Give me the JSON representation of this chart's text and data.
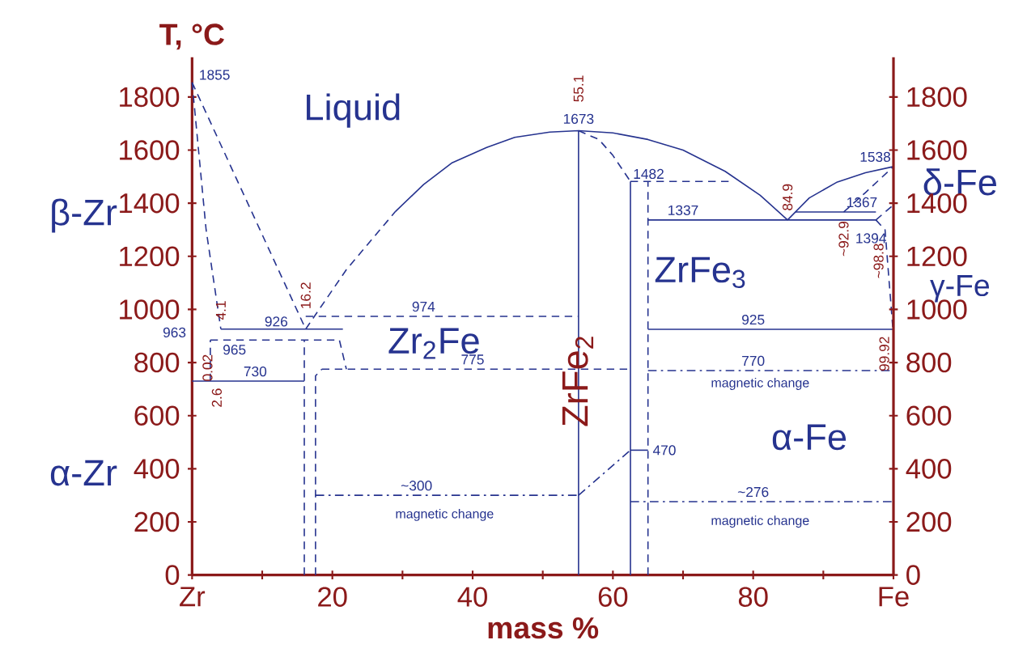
{
  "chart_data": {
    "type": "line",
    "xlabel": "mass %",
    "ylabel": "T, °C",
    "color": "#26338f",
    "grid": false,
    "marker": "none",
    "xlim": [
      0,
      100
    ],
    "xticks": [
      {
        "value": 0,
        "label": "Zr"
      },
      {
        "value": 10,
        "label": null
      },
      20,
      {
        "value": 30,
        "label": null
      },
      40,
      {
        "value": 50,
        "label": null
      },
      60,
      {
        "value": 70,
        "label": null
      },
      80,
      {
        "value": 90,
        "label": null
      },
      {
        "value": 100,
        "label": "Fe"
      }
    ],
    "ylim": [
      0,
      1950
    ],
    "yticks": [
      0,
      200,
      400,
      600,
      800,
      1000,
      1200,
      1400,
      1600,
      1800
    ],
    "y2lim": [
      0,
      1950
    ],
    "y2ticks": [
      0,
      200,
      400,
      600,
      800,
      1000,
      1200,
      1400,
      1600,
      1800
    ],
    "series": [
      {
        "x": [
          0,
          16.2
        ],
        "values": [
          1855,
          926
        ],
        "line_style": "dashed"
      },
      {
        "x": [
          16.2,
          22,
          29
        ],
        "values": [
          926,
          1150,
          1369
        ],
        "line_style": "dashed"
      },
      {
        "x": [
          29,
          33,
          37,
          42,
          46,
          51,
          55.1,
          60,
          65,
          70,
          76,
          81,
          84.9
        ],
        "values": [
          1369,
          1470,
          1551,
          1610,
          1648,
          1668,
          1673,
          1665,
          1640,
          1600,
          1520,
          1430,
          1337
        ],
        "line_style": "solid"
      },
      {
        "x": [
          84.9,
          88,
          92,
          96,
          100
        ],
        "values": [
          1337,
          1420,
          1480,
          1515,
          1538
        ],
        "line_style": "solid"
      },
      {
        "x": [
          0,
          2,
          4.1
        ],
        "values": [
          1855,
          1300,
          926
        ],
        "line_style": "dashed"
      },
      {
        "x": [
          4.1,
          21.5
        ],
        "values": [
          926,
          926
        ],
        "line_style": "solid"
      },
      {
        "x": [
          2.6,
          21,
          22
        ],
        "values": [
          885,
          885,
          775
        ],
        "line_style": "dashed"
      },
      {
        "x": [
          2.6,
          2.6
        ],
        "values": [
          730,
          885
        ],
        "line_style": "dashed"
      },
      {
        "x": [
          0,
          16
        ],
        "values": [
          730,
          730
        ],
        "line_style": "solid"
      },
      {
        "x": [
          16,
          16
        ],
        "values": [
          0,
          885
        ],
        "line_style": "dashed"
      },
      {
        "x": [
          17.6,
          17.6,
          18.5
        ],
        "values": [
          0,
          750,
          775
        ],
        "line_style": "dashed"
      },
      {
        "x": [
          18.5,
          62.5
        ],
        "values": [
          775,
          775
        ],
        "line_style": "dashed"
      },
      {
        "x": [
          16.2,
          55.1
        ],
        "values": [
          974,
          974
        ],
        "line_style": "dashed"
      },
      {
        "x": [
          55.1,
          55.1
        ],
        "values": [
          0,
          1673
        ],
        "line_style": "solid"
      },
      {
        "x": [
          55.1,
          58,
          60,
          62.5
        ],
        "values": [
          1673,
          1640,
          1580,
          1482
        ],
        "line_style": "dashed"
      },
      {
        "x": [
          62.5,
          62.5
        ],
        "values": [
          0,
          1482
        ],
        "line_style": "solid"
      },
      {
        "x": [
          62.5,
          76.5
        ],
        "values": [
          1482,
          1482
        ],
        "line_style": "dashed"
      },
      {
        "x": [
          65,
          65
        ],
        "values": [
          0,
          1482
        ],
        "line_style": "dashed"
      },
      {
        "x": [
          65,
          97.5
        ],
        "values": [
          1337,
          1337
        ],
        "line_style": "solid"
      },
      {
        "x": [
          86,
          97.5
        ],
        "values": [
          1367,
          1367
        ],
        "line_style": "solid"
      },
      {
        "x": [
          92.9,
          96,
          100
        ],
        "values": [
          1367,
          1440,
          1538
        ],
        "line_style": "dashed"
      },
      {
        "x": [
          97.5,
          98.8,
          99.92
        ],
        "values": [
          1337,
          1300,
          925
        ],
        "line_style": "dashed"
      },
      {
        "x": [
          97.5,
          100
        ],
        "values": [
          1337,
          1394
        ],
        "line_style": "dashed"
      },
      {
        "x": [
          65,
          100
        ],
        "values": [
          925,
          925
        ],
        "line_style": "solid"
      },
      {
        "x": [
          65,
          100
        ],
        "values": [
          770,
          770
        ],
        "line_style": "dashdot"
      },
      {
        "x": [
          17.6,
          55.1
        ],
        "values": [
          300,
          300
        ],
        "line_style": "dashdot"
      },
      {
        "x": [
          55.1,
          62.5
        ],
        "values": [
          300,
          470
        ],
        "line_style": "dashdot"
      },
      {
        "x": [
          62.5,
          65
        ],
        "values": [
          470,
          470
        ],
        "line_style": "solid"
      },
      {
        "x": [
          62.5,
          100
        ],
        "values": [
          276,
          276
        ],
        "line_style": "dashdot"
      }
    ],
    "annotations": [
      "Liquid",
      "β-Zr",
      "α-Zr",
      "Zr$_{2}$Fe",
      "ZrFe$_{2}$",
      "ZrFe$_{3}$",
      "δ-Fe",
      "γ-Fe",
      "α-Fe",
      "magnetic change",
      "magnetic change",
      "magnetic change",
      {
        "text": "1855",
        "x": 0,
        "y": 1855
      },
      {
        "text": "1673",
        "x": 55.1,
        "y": 1673
      },
      {
        "text": "55.1",
        "x": 55.1,
        "y": 1673
      },
      {
        "text": "1482",
        "x": 62.5,
        "y": 1482
      },
      {
        "text": "1538",
        "x": 100,
        "y": 1538
      },
      {
        "text": "84.9",
        "x": 84.9,
        "y": 1337
      },
      {
        "text": "1337",
        "x": 70,
        "y": 1337
      },
      {
        "text": "1367",
        "x": 92.9,
        "y": 1367
      },
      {
        "text": "1394",
        "x": 100,
        "y": 1394
      },
      {
        "text": "~92.9",
        "x": 92.9,
        "y": 1367
      },
      {
        "text": "~98.8",
        "x": 98.8,
        "y": 1300
      },
      {
        "text": "926",
        "x": 12,
        "y": 926
      },
      {
        "text": "16.2",
        "x": 16.2,
        "y": 926
      },
      {
        "text": "4.1",
        "x": 4.1,
        "y": 926
      },
      {
        "text": "974",
        "x": 33,
        "y": 974
      },
      {
        "text": "963",
        "x": 2.6,
        "y": 885
      },
      {
        "text": "965",
        "x": 4,
        "y": 885
      },
      {
        "text": "730",
        "x": 9,
        "y": 730
      },
      {
        "text": "2.6",
        "x": 2.6,
        "y": 730
      },
      {
        "text": "775",
        "x": 40,
        "y": 775
      },
      {
        "text": "925",
        "x": 80,
        "y": 925
      },
      {
        "text": "770",
        "x": 80,
        "y": 770
      },
      {
        "text": "99.92",
        "x": 99.92,
        "y": 925
      },
      {
        "text": "~300",
        "x": 32,
        "y": 300
      },
      {
        "text": "470",
        "x": 65,
        "y": 470
      },
      {
        "text": "~276",
        "x": 80,
        "y": 276
      },
      "0.02"
    ]
  }
}
